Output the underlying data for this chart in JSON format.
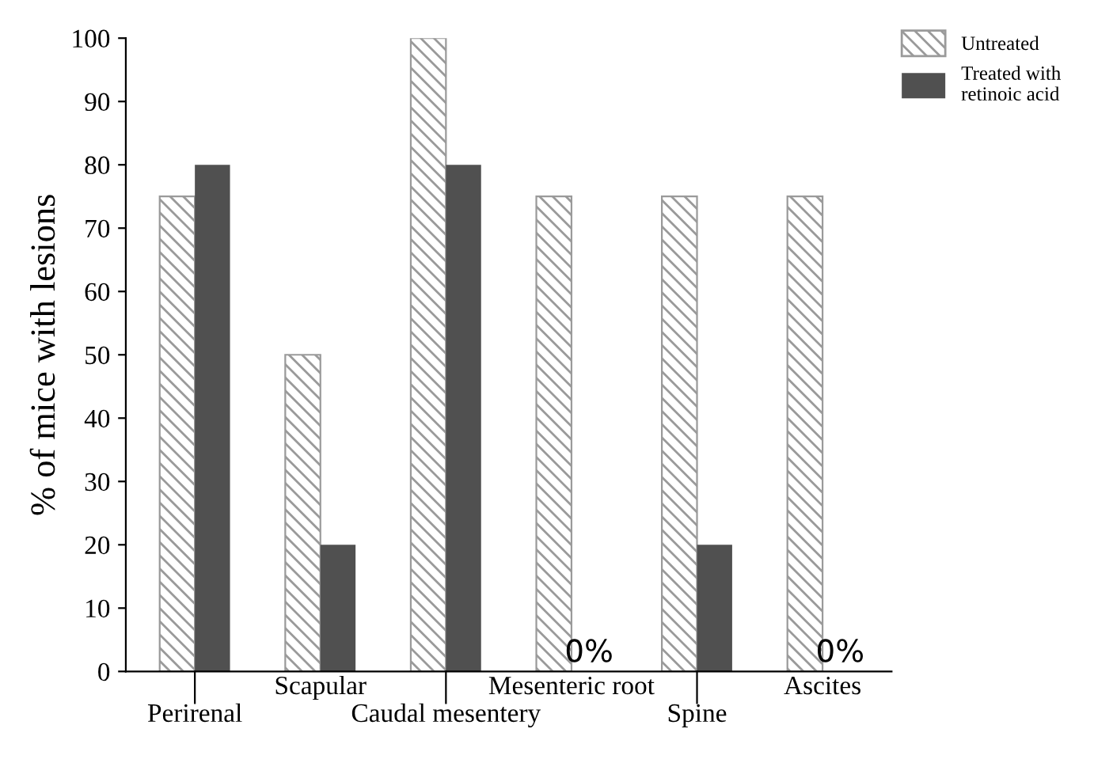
{
  "chart_data": {
    "type": "bar",
    "ylabel": "% of mice with lesions",
    "categories": [
      "Perirenal",
      "Scapular",
      "Caudal mesentery",
      "Mesenteric root",
      "Spine",
      "Ascites"
    ],
    "series": [
      {
        "name": "Untreated",
        "color": "#9a9a9a",
        "values": [
          75,
          50,
          100,
          75,
          75,
          75
        ]
      },
      {
        "name": "Treated with retinoic acid",
        "color": "#505050",
        "values": [
          80,
          20,
          80,
          0,
          20,
          0
        ],
        "value_labels": [
          null,
          null,
          null,
          "0%",
          null,
          "0%"
        ]
      }
    ],
    "ylim": [
      0,
      100
    ],
    "yticks": [
      0,
      10,
      20,
      30,
      40,
      50,
      60,
      70,
      80,
      90,
      100
    ],
    "grid": false,
    "legend": "top right"
  }
}
